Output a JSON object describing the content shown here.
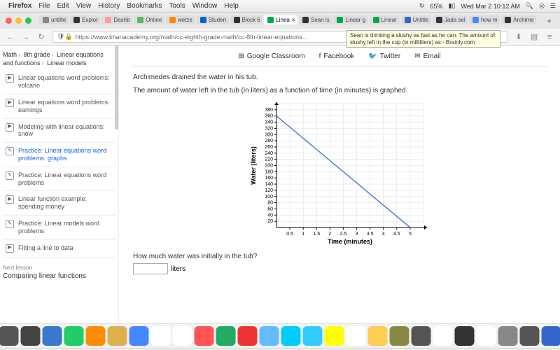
{
  "menubar": {
    "app": "Firefox",
    "items": [
      "File",
      "Edit",
      "View",
      "History",
      "Bookmarks",
      "Tools",
      "Window",
      "Help"
    ],
    "battery": "65%",
    "datetime": "Wed Mar 2  10:12 AM"
  },
  "tabs": [
    {
      "label": "untitle",
      "color": "#888"
    },
    {
      "label": "Explor",
      "color": "#333"
    },
    {
      "label": "Dashb",
      "color": "#f9a"
    },
    {
      "label": "Online",
      "color": "#5b5"
    },
    {
      "label": "wetze",
      "color": "#f80"
    },
    {
      "label": "Studen",
      "color": "#06c"
    },
    {
      "label": "Block 6",
      "color": "#333"
    },
    {
      "label": "Linea",
      "color": "#0a4",
      "active": true,
      "closable": true
    },
    {
      "label": "Sean is",
      "color": "#333"
    },
    {
      "label": "Linear g",
      "color": "#0a4"
    },
    {
      "label": "Linear",
      "color": "#0a4"
    },
    {
      "label": "Untitle",
      "color": "#36c"
    },
    {
      "label": "Jada sel",
      "color": "#333"
    },
    {
      "label": "how m",
      "color": "#48f"
    },
    {
      "label": "Archime",
      "color": "#333"
    }
  ],
  "url": "https://www.khanacademy.org/math/cc-eighth-grade-math/cc-8th-linear-equations...",
  "tooltip": "Sean is drinking a slushy as fast as he can. The amount of slushy left in the cup (in milliliters) as - Brainly.com",
  "breadcrumb": [
    "Math",
    "8th grade",
    "Linear equations and functions",
    "Linear models"
  ],
  "sidebar_items": [
    {
      "icon": "▶",
      "label": "Linear equations word problems: volcano"
    },
    {
      "icon": "▶",
      "label": "Linear equations word problems: earnings"
    },
    {
      "icon": "▶",
      "label": "Modeling with linear equations: snow"
    },
    {
      "icon": "✎",
      "label": "Practice: Linear equations word problems: graphs",
      "active": true
    },
    {
      "icon": "✎",
      "label": "Practice: Linear equations word problems"
    },
    {
      "icon": "▶",
      "label": "Linear function example: spending money"
    },
    {
      "icon": "✎",
      "label": "Practice: Linear models word problems"
    },
    {
      "icon": "▶",
      "label": "Fitting a line to data"
    }
  ],
  "next_lesson": {
    "label": "Next lesson",
    "title": "Comparing linear functions"
  },
  "share": {
    "classroom": "Google Classroom",
    "facebook": "Facebook",
    "twitter": "Twitter",
    "email": "Email"
  },
  "problem": {
    "line1": "Archimedes drained the water in his tub.",
    "line2": "The amount of water left in the tub (in liters) as a function of time (in minutes) is graphed.",
    "question": "How much water was initially in the tub?",
    "unit": "liters"
  },
  "chart": {
    "type": "line",
    "xlabel": "Time (minutes)",
    "ylabel": "Water (liters)",
    "xlim": [
      0,
      5.5
    ],
    "ylim": [
      0,
      400
    ],
    "xtick_step": 0.5,
    "xtick_labels": [
      "0.5",
      "1",
      "1.5",
      "2",
      "2.5",
      "3",
      "3.5",
      "4",
      "4.5",
      "5"
    ],
    "ytick_step": 20,
    "ytick_labels": [
      "20",
      "40",
      "60",
      "80",
      "100",
      "120",
      "140",
      "160",
      "180",
      "200",
      "220",
      "240",
      "260",
      "280",
      "300",
      "320",
      "340",
      "360",
      "380"
    ],
    "line_color": "#4f7fd6",
    "line_width": 1.5,
    "grid_color": "#dddddd",
    "axis_color": "#000000",
    "background": "#ffffff",
    "data_points": [
      [
        0,
        360
      ],
      [
        5,
        0
      ]
    ],
    "label_fontsize": 9
  },
  "dock_colors": [
    "#3b79cc",
    "#555",
    "#444",
    "#3b79cc",
    "#2c6",
    "#ff8c00",
    "#e0b050",
    "#48f",
    "#fff",
    "#fff",
    "#f55",
    "#2a6",
    "#e33",
    "#6bf",
    "#0cf",
    "#3cf",
    "#ff0",
    "#fff",
    "#fc5",
    "#884",
    "#555",
    "#fff",
    "#333",
    "#fff",
    "#888",
    "#555",
    "#36c",
    "#888"
  ]
}
